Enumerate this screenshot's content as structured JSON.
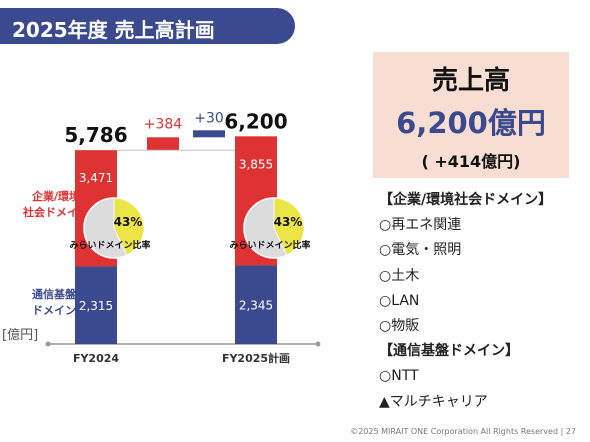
{
  "title": "2025年度 売上高計画",
  "unit_label": "[億円]",
  "chart_data": {
    "type": "bar",
    "stacked": true,
    "categories": [
      "FY2024",
      "FY2025計画"
    ],
    "series": [
      {
        "name": "通信基盤ドメイン",
        "values": [
          2315,
          2345
        ],
        "color": "#3b4a8f"
      },
      {
        "name": "企業/環境社会ドメイン",
        "values": [
          3471,
          3855
        ],
        "color": "#dd3333"
      }
    ],
    "totals": [
      "5,786",
      "6,200"
    ],
    "bridge": [
      {
        "label": "+384",
        "value": 384,
        "color": "#dd3333"
      },
      {
        "label": "+30",
        "value": 30,
        "color": "#3b4a8f"
      }
    ],
    "series_labels": {
      "corporate": [
        "企業/環境",
        "社会ドメイン"
      ],
      "telecom": [
        "通信基盤",
        "ドメイン"
      ]
    },
    "ratio": {
      "label": "みらいドメイン比率",
      "values": [
        43,
        43
      ],
      "value_labels": [
        "43%",
        "43%"
      ]
    }
  },
  "summary": {
    "title": "売上高",
    "value": "6,200億円",
    "diff": "( +414億円)"
  },
  "lists": [
    {
      "text": "【企業/環境社会ドメイン】",
      "header": true
    },
    {
      "text": "○再エネ関連",
      "header": false
    },
    {
      "text": "○電気・照明",
      "header": false
    },
    {
      "text": "○土木",
      "header": false
    },
    {
      "text": "○LAN",
      "header": false
    },
    {
      "text": "○物販",
      "header": false
    },
    {
      "text": "【通信基盤ドメイン】",
      "header": true
    },
    {
      "text": "○NTT",
      "header": false
    },
    {
      "text": "▲マルチキャリア",
      "header": false
    }
  ],
  "footer": "©2025 MIRAIT ONE Corporation All Rights Reserved | 27"
}
